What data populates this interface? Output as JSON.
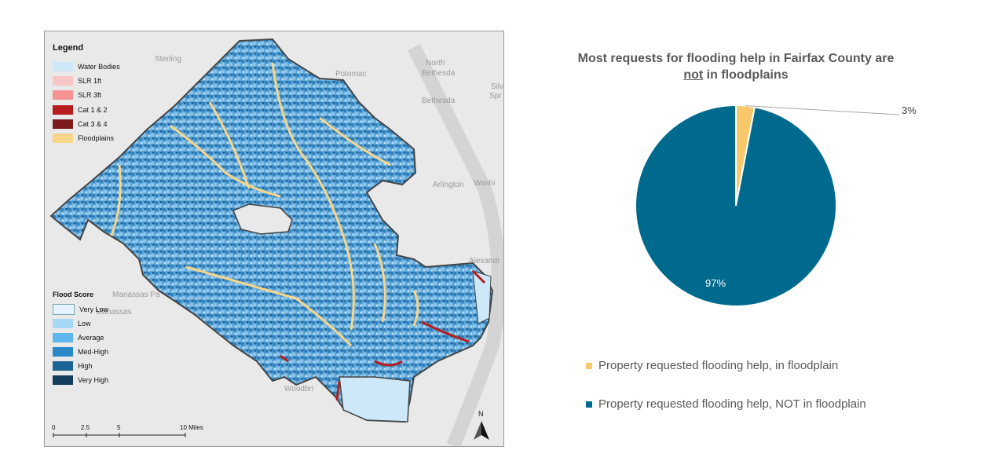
{
  "map": {
    "legend_title": "Legend",
    "legend_items": [
      {
        "label": "Water Bodies",
        "color": "#cde9f9"
      },
      {
        "label": "SLR 1ft",
        "color": "#f8c6c6"
      },
      {
        "label": "SLR 3ft",
        "color": "#f59393"
      },
      {
        "label": "Cat 1 & 2",
        "color": "#b81d1d"
      },
      {
        "label": "Cat 3 & 4",
        "color": "#7d1c1c"
      },
      {
        "label": "Floodplains",
        "color": "#f7d58a"
      }
    ],
    "flood_score_title": "Flood Score",
    "flood_score_items": [
      {
        "label": "Very Low",
        "color": "#e4f3fc"
      },
      {
        "label": "Low",
        "color": "#a6d8f5"
      },
      {
        "label": "Average",
        "color": "#5fb6ec"
      },
      {
        "label": "Med-High",
        "color": "#2c89c8"
      },
      {
        "label": "High",
        "color": "#1d6496"
      },
      {
        "label": "Very High",
        "color": "#123d5b"
      }
    ],
    "place_labels": [
      "Sterling",
      "Potomac",
      "North",
      "Bethesda",
      "Bethesda",
      "Silv",
      "Spr",
      "Arlington",
      "Washi",
      "Alexandr",
      "Manassas Pa",
      "Manassas",
      "Woodbri"
    ],
    "scale_labels": [
      "0",
      "2.5",
      "5",
      "10 Miles"
    ],
    "north_label": "N"
  },
  "chart_data": {
    "type": "pie",
    "title_parts": [
      "Most requests for flooding help in Fairfax County are",
      "not",
      "in floodplains"
    ],
    "slices": [
      {
        "label": "Property requested flooding help, in floodplain",
        "value": 3,
        "value_label": "3%",
        "color": "#f8c96b"
      },
      {
        "label": "Property requested flooding help, NOT in floodplain",
        "value": 97,
        "value_label": "97%",
        "color": "#006a8e"
      }
    ],
    "legend_position": "bottom"
  }
}
